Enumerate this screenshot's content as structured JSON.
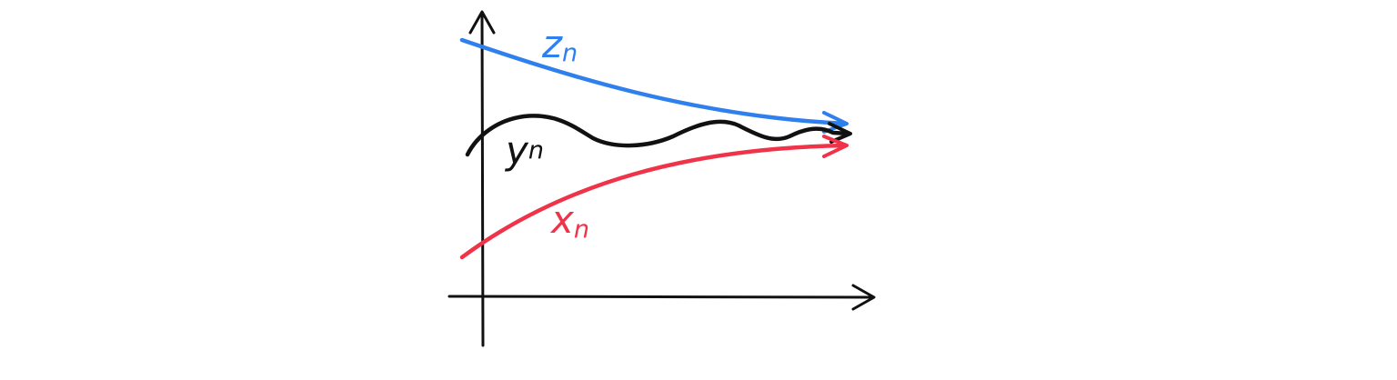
{
  "sequences": [
    {
      "key": "z",
      "label": "z",
      "subscript": "n",
      "color": "#2f80ed",
      "shape": "decreasing, converging from above"
    },
    {
      "key": "y",
      "label": "y",
      "subscript": "n",
      "color": "#111111",
      "shape": "oscillating, squeezed between the other two"
    },
    {
      "key": "x",
      "label": "x",
      "subscript": "n",
      "color": "#ef3349",
      "shape": "increasing, converging from below"
    }
  ],
  "axis_color": "#111111"
}
